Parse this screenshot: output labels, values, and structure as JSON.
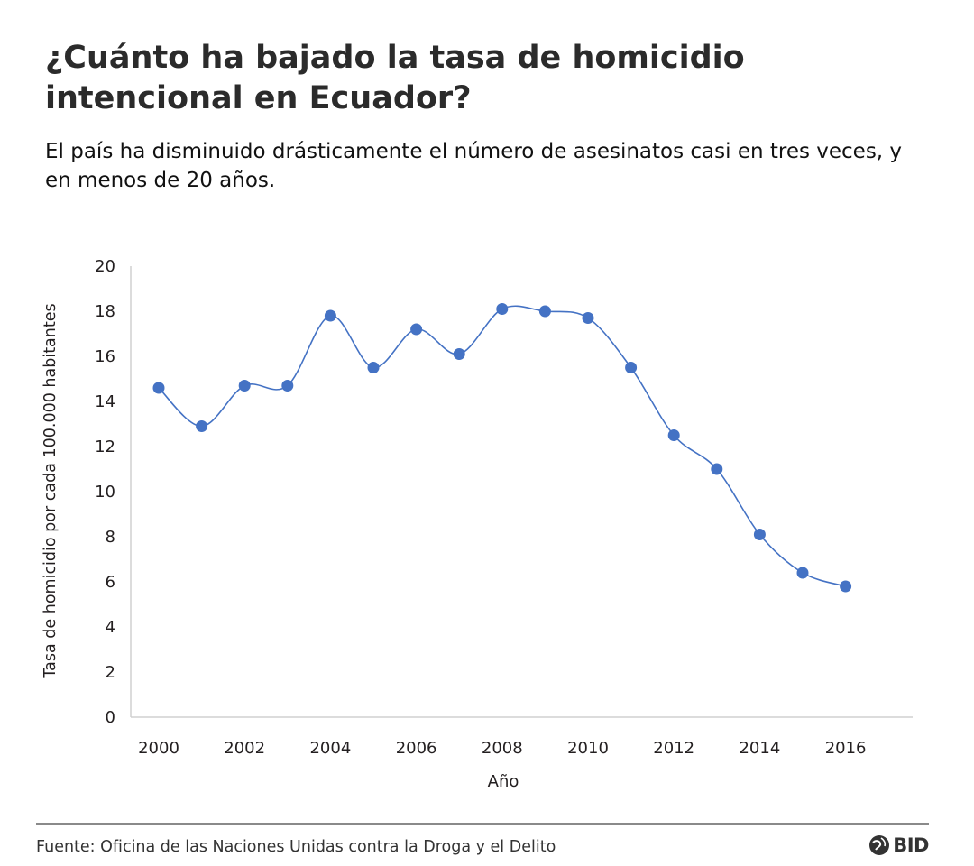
{
  "header": {
    "title": "¿Cuánto ha bajado la tasa de homicidio intencional en Ecuador?",
    "subtitle": "El país ha disminuido drásticamente el número de asesinatos casi en tres veces, y en menos de 20 años."
  },
  "footer": {
    "source": "Fuente: Oficina de las Naciones Unidas contra la Droga y el Delito",
    "logo_text": "BID"
  },
  "colors": {
    "series": "#4472c4",
    "axis": "#d0d0d0",
    "text": "#231f20"
  },
  "chart_data": {
    "type": "scatter",
    "title": "",
    "xlabel": "Año",
    "ylabel": "Tasa de homicidio por cada 100.000 habitantes",
    "xlim": [
      2000,
      2017
    ],
    "ylim": [
      0,
      20
    ],
    "x_ticks": [
      2000,
      2002,
      2004,
      2006,
      2008,
      2010,
      2012,
      2014,
      2016
    ],
    "y_ticks": [
      0,
      2,
      4,
      6,
      8,
      10,
      12,
      14,
      16,
      18,
      20
    ],
    "smoothed_line": true,
    "grid": false,
    "legend": "none",
    "series": [
      {
        "x": [
          2000,
          2001,
          2002,
          2003,
          2004,
          2005,
          2006,
          2007,
          2008,
          2009,
          2010,
          2011,
          2012,
          2013,
          2014,
          2015,
          2016
        ],
        "values": [
          14.6,
          12.9,
          14.7,
          14.7,
          17.8,
          15.5,
          17.2,
          16.1,
          18.1,
          18.0,
          17.7,
          15.5,
          12.5,
          11.0,
          8.1,
          6.4,
          5.8
        ]
      }
    ]
  }
}
